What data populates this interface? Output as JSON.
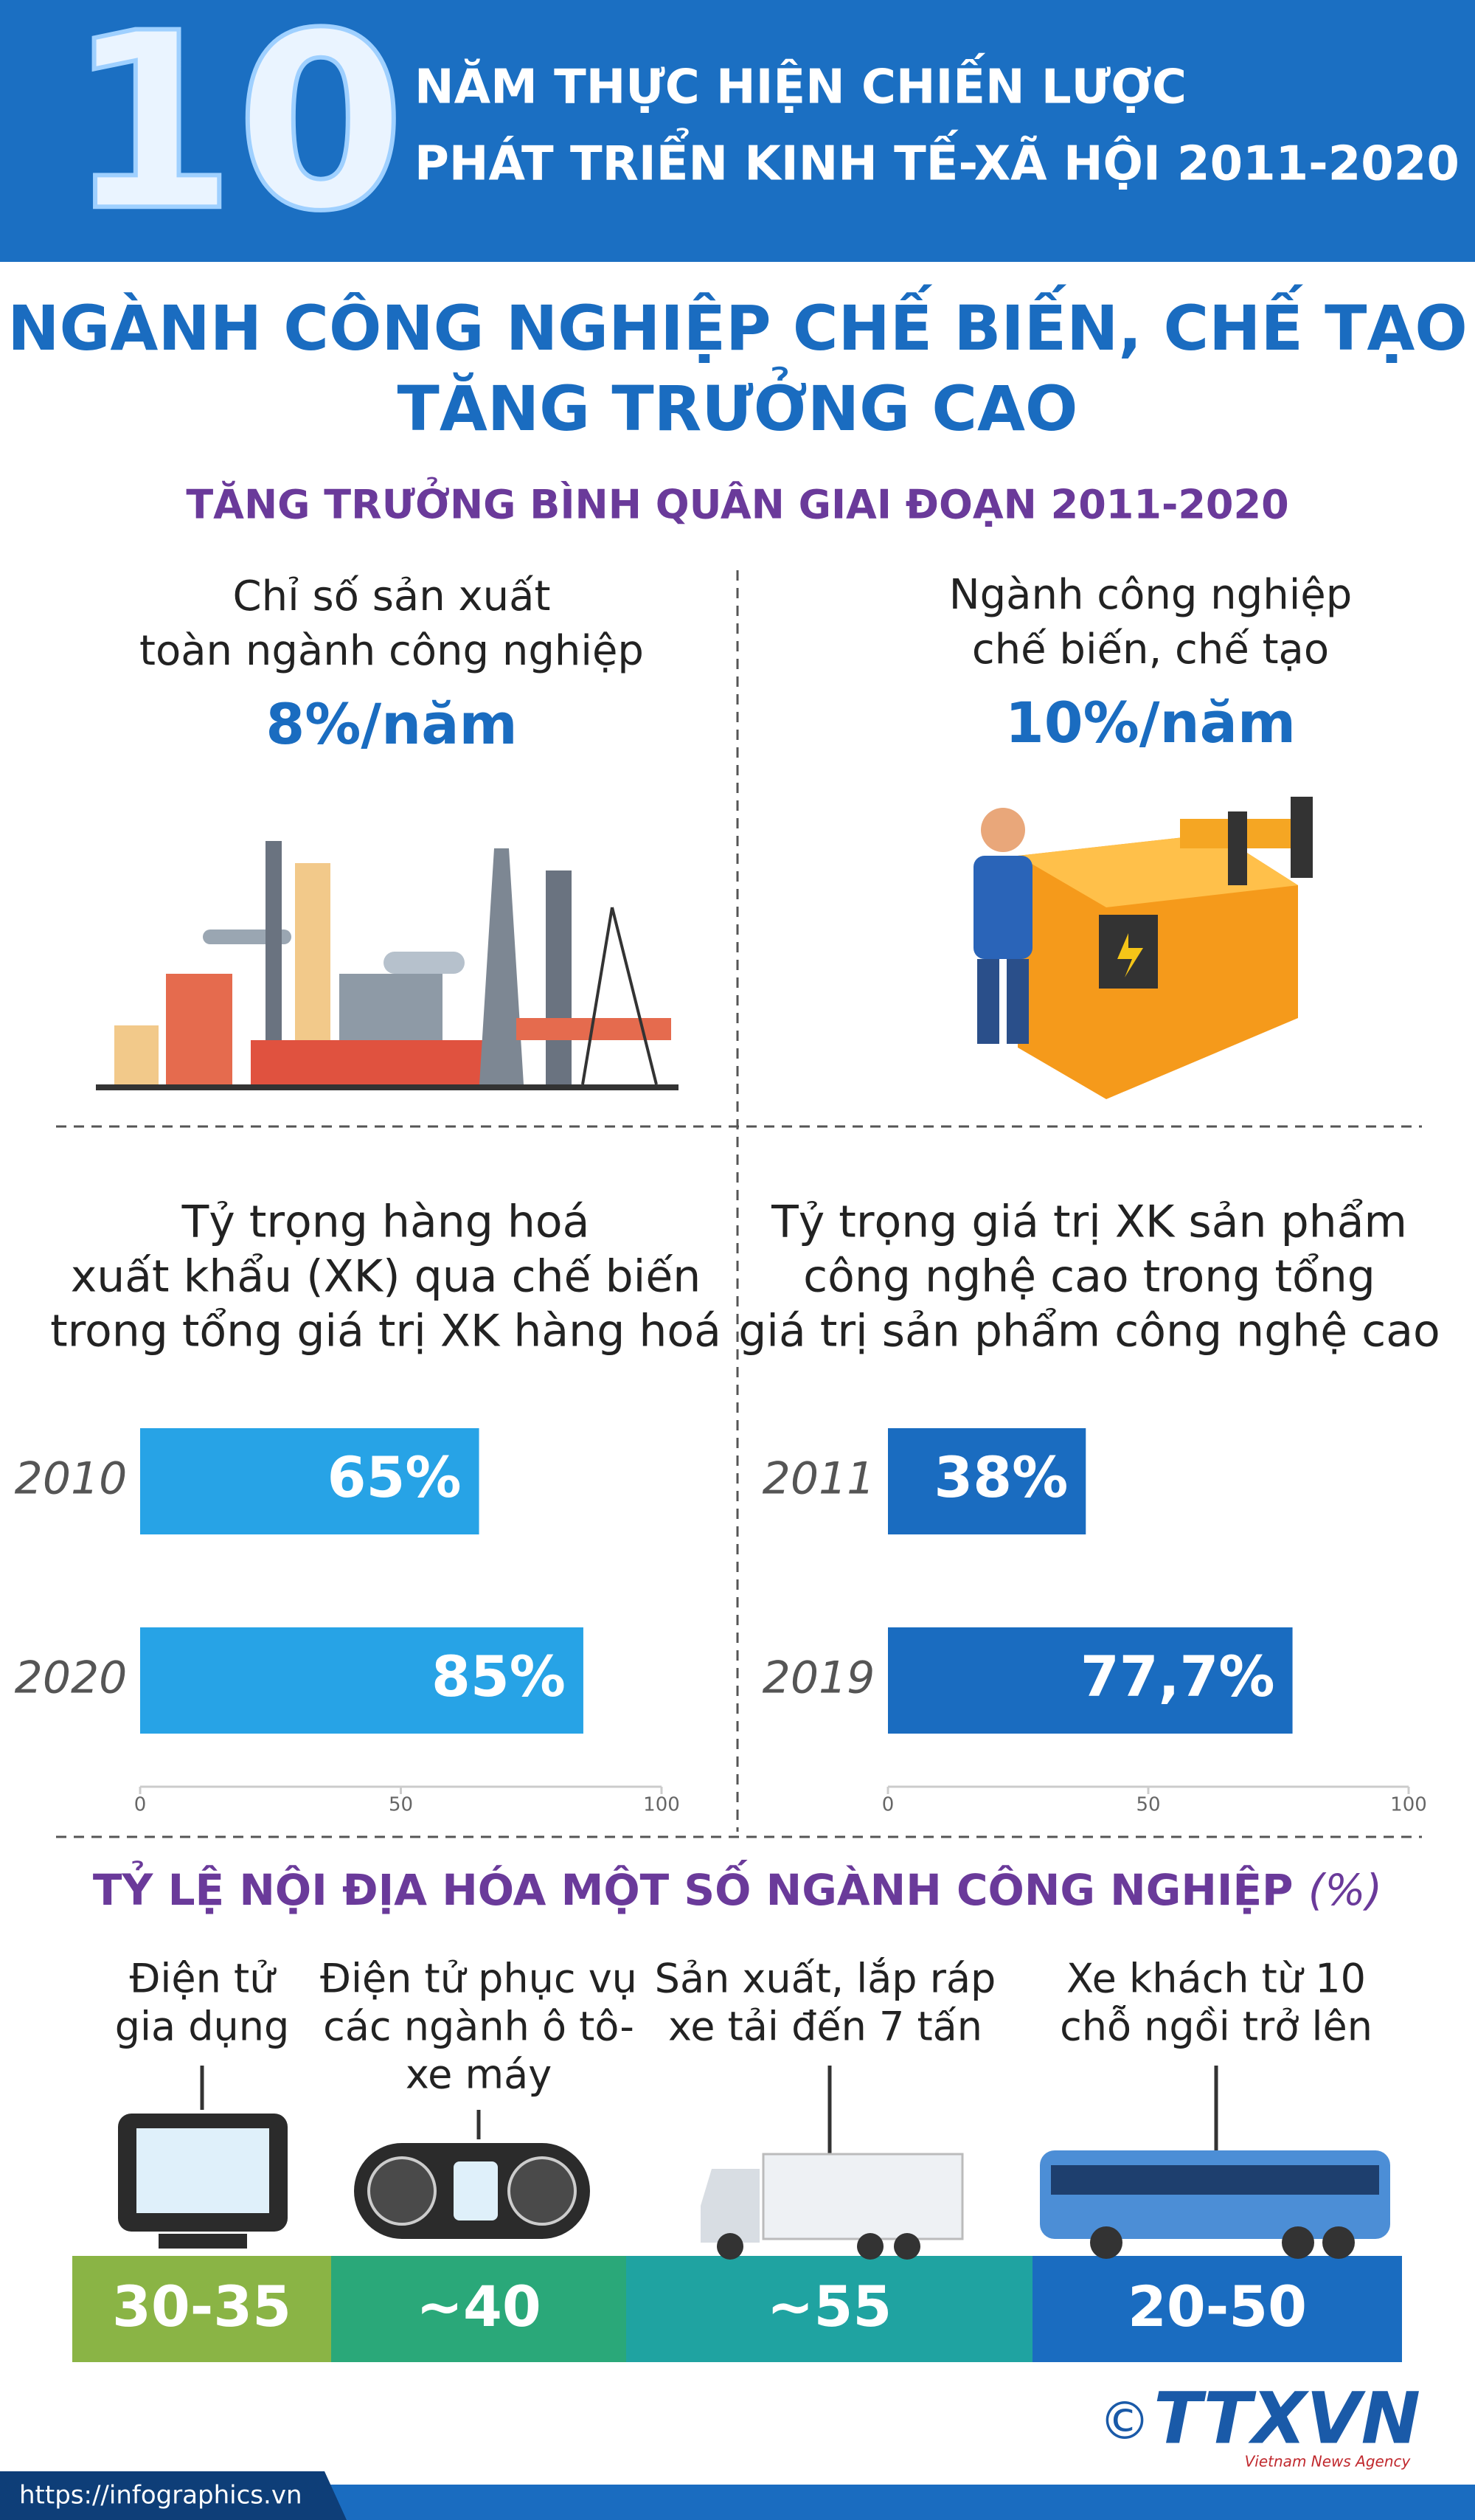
{
  "header": {
    "number": "10",
    "line1": "NĂM THỰC HIỆN CHIẾN LƯỢC",
    "line2": "PHÁT TRIỂN KINH TẾ-XÃ HỘI 2011-2020"
  },
  "title": {
    "line1": "NGÀNH CÔNG NGHIỆP CHẾ BIẾN, CHẾ TẠO",
    "line2": "TĂNG TRƯỞNG CAO"
  },
  "subtitle": "TĂNG TRƯỞNG BÌNH QUÂN GIAI ĐOẠN 2011-2020",
  "growth": [
    {
      "label": [
        "Chỉ số sản xuất",
        "toàn ngành công nghiệp"
      ],
      "value": "8%/năm"
    },
    {
      "label": [
        "Ngành công nghiệp",
        "chế biến, chế tạo"
      ],
      "value": "10%/năm"
    }
  ],
  "chart_data": [
    {
      "type": "bar",
      "orientation": "horizontal",
      "title": [
        "Tỷ trọng hàng hoá",
        "xuất khẩu (XK) qua chế biến",
        "trong tổng giá trị XK hàng hoá"
      ],
      "categories": [
        "2010",
        "2020"
      ],
      "values": [
        65,
        85
      ],
      "value_labels": [
        "65%",
        "85%"
      ],
      "color": "#27a3e6",
      "xlim": [
        0,
        100
      ],
      "xticks": [
        0,
        50,
        100
      ]
    },
    {
      "type": "bar",
      "orientation": "horizontal",
      "title": [
        "Tỷ trọng giá trị XK sản phẩm",
        "công nghệ cao trong tổng",
        "giá trị sản phẩm công nghệ cao"
      ],
      "categories": [
        "2011",
        "2019"
      ],
      "values": [
        38,
        77.7
      ],
      "value_labels": [
        "38%",
        "77,7%"
      ],
      "color": "#1a6cc0",
      "xlim": [
        0,
        100
      ],
      "xticks": [
        0,
        50,
        100
      ]
    }
  ],
  "localization": {
    "title": "TỶ LỆ NỘI ĐỊA HÓA MỘT SỐ NGÀNH CÔNG NGHIỆP",
    "unit": "(%)",
    "items": [
      {
        "label": [
          "Điện tử",
          "gia dụng"
        ],
        "value": "30-35",
        "color": "#8ab445"
      },
      {
        "label": [
          "Điện tử phục vụ",
          "các ngành ô tô-",
          "xe máy"
        ],
        "value": "~40",
        "color": "#2aa879"
      },
      {
        "label": [
          "Sản xuất, lắp ráp",
          "xe tải đến 7 tấn"
        ],
        "value": "~55",
        "color": "#1fa3a1"
      },
      {
        "label": [
          "Xe khách từ 10",
          "chỗ ngồi trở lên"
        ],
        "value": "20-50",
        "color": "#1a6cc0"
      }
    ]
  },
  "footer": {
    "url": "https://infographics.vn",
    "copyright": "©",
    "logo": "TTXVN",
    "agency": "Vietnam News Agency"
  }
}
